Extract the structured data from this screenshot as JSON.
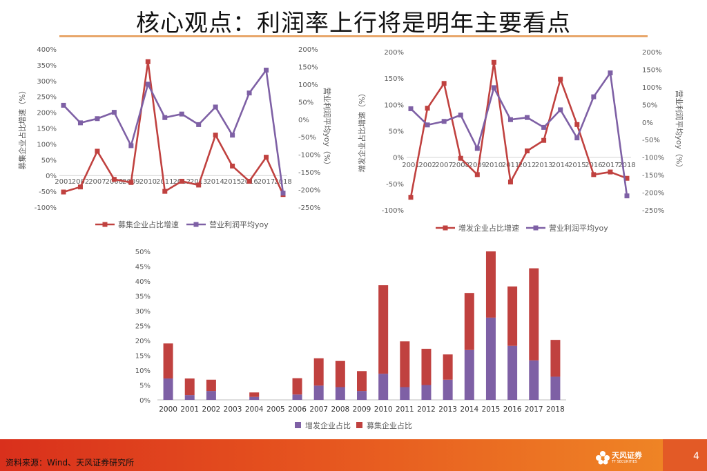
{
  "slide": {
    "title": "核心观点：利润率上行将是明年主要看点",
    "source": "资料来源：Wind、天风证券研究所",
    "brand_name": "天风证券",
    "brand_sub": "TF SECURITIES",
    "page_number": "4"
  },
  "colors": {
    "red": "#c0413f",
    "purple": "#7e60a5",
    "axis": "#888888",
    "label": "#595959"
  },
  "chart_data": [
    {
      "type": "line",
      "categories": [
        "2001",
        "2002",
        "2007",
        "2008",
        "2009",
        "2010",
        "2011",
        "2012",
        "2013",
        "2014",
        "2015",
        "2016",
        "2017",
        "2018"
      ],
      "category_label_text": [
        "2001",
        "2002",
        "2007",
        "2008",
        "2009",
        "2010",
        "2011",
        "2012",
        "2013",
        "2014",
        "2015",
        "2016",
        "2017",
        "2018"
      ],
      "ylabel": "募集企业占比增速（%）",
      "y2label": "营业利润平均yoy（%）",
      "ylim": [
        -100,
        400
      ],
      "y2lim": [
        -250,
        200
      ],
      "y_ticks": [
        "-100%",
        "-50%",
        "0%",
        "50%",
        "100%",
        "150%",
        "200%",
        "250%",
        "300%",
        "350%",
        "400%"
      ],
      "y2_ticks": [
        "-250%",
        "-200%",
        "-150%",
        "-100%",
        "-50%",
        "0%",
        "50%",
        "100%",
        "150%",
        "200%"
      ],
      "series": [
        {
          "name": "募集企业占比增速",
          "axis": "left",
          "color": "#c0413f",
          "values": [
            -52,
            -36,
            77,
            -12,
            -22,
            360,
            -50,
            -18,
            -30,
            128,
            30,
            -18,
            58,
            -60
          ]
        },
        {
          "name": "营业利润平均yoy",
          "axis": "right",
          "color": "#7e60a5",
          "values": [
            40,
            -10,
            2,
            20,
            -75,
            100,
            5,
            15,
            -15,
            35,
            -45,
            75,
            140,
            -210
          ]
        }
      ],
      "legend": "bottom"
    },
    {
      "type": "line",
      "categories": [
        "2001",
        "2002",
        "2007",
        "2008",
        "2009",
        "2010",
        "2011",
        "2012",
        "2013",
        "2014",
        "2015",
        "2016",
        "2017",
        "2018"
      ],
      "category_label_text": [
        "2001",
        "2002",
        "2007",
        "2008",
        "2009",
        "2010",
        "2011",
        "2012",
        "2013",
        "2014",
        "2015",
        "2016",
        "2017",
        "2018"
      ],
      "ylabel": "增发企业占比增速（%）",
      "y2label": "营业利润平均yoy（%）",
      "ylim": [
        -100,
        200
      ],
      "y2lim": [
        -250,
        200
      ],
      "y_ticks": [
        "-100%",
        "-50%",
        "0%",
        "50%",
        "100%",
        "150%",
        "200%"
      ],
      "y2_ticks": [
        "-250%",
        "-200%",
        "-150%",
        "-100%",
        "-50%",
        "0%",
        "50%",
        "100%",
        "150%",
        "200%"
      ],
      "series": [
        {
          "name": "增发企业占比增速",
          "axis": "left",
          "color": "#c0413f",
          "values": [
            -76,
            93,
            140,
            -2,
            -33,
            180,
            -47,
            12,
            32,
            148,
            62,
            -33,
            -28,
            -40
          ]
        },
        {
          "name": "营业利润平均yoy",
          "axis": "right",
          "color": "#7e60a5",
          "values": [
            38,
            -8,
            2,
            20,
            -75,
            98,
            7,
            13,
            -15,
            35,
            -45,
            72,
            140,
            -210
          ]
        }
      ],
      "legend": "bottom"
    },
    {
      "type": "bar",
      "stacked": true,
      "categories": [
        "2000",
        "2001",
        "2002",
        "2003",
        "2004",
        "2005",
        "2006",
        "2007",
        "2008",
        "2009",
        "2010",
        "2011",
        "2012",
        "2013",
        "2014",
        "2015",
        "2016",
        "2017",
        "2018"
      ],
      "ylim": [
        0,
        50
      ],
      "y_ticks": [
        "0%",
        "5%",
        "10%",
        "15%",
        "20%",
        "25%",
        "30%",
        "35%",
        "40%",
        "45%",
        "50%"
      ],
      "series": [
        {
          "name": "增发企业占比",
          "color": "#7e60a5",
          "values": [
            7.2,
            1.6,
            3.0,
            0,
            1.0,
            0,
            1.8,
            4.8,
            4.3,
            3.0,
            8.8,
            4.3,
            5.0,
            6.8,
            16.8,
            27.7,
            18.2,
            13.3,
            7.8
          ]
        },
        {
          "name": "募集企业占比",
          "color": "#c0413f",
          "values": [
            11.8,
            5.6,
            3.8,
            0,
            1.5,
            0,
            5.5,
            9.2,
            8.8,
            6.7,
            29.8,
            15.4,
            12.2,
            8.5,
            19.2,
            22.3,
            20.0,
            31.0,
            12.4
          ]
        }
      ],
      "legend": "bottom"
    }
  ]
}
